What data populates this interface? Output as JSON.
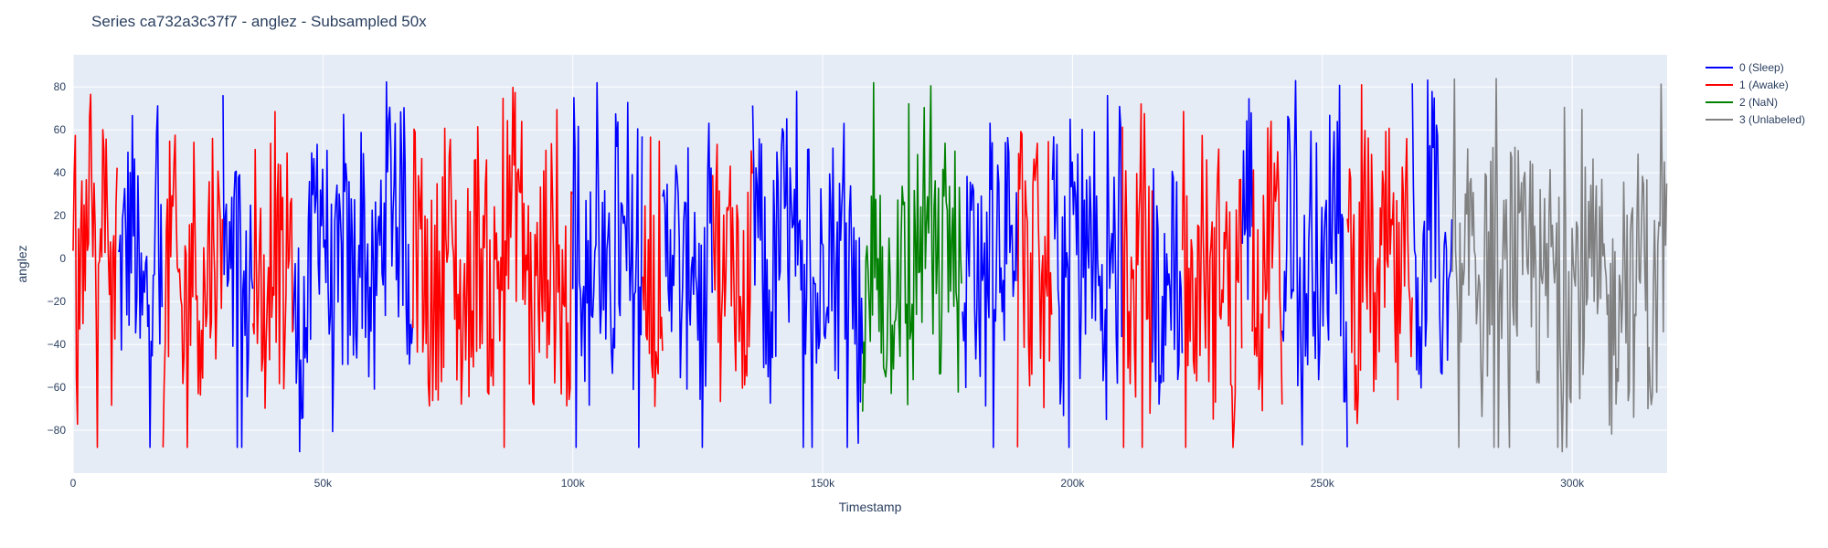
{
  "chart_data": {
    "type": "line",
    "title": "Series ca732a3c37f7 - anglez - Subsampled 50x",
    "xlabel": "Timestamp",
    "ylabel": "anglez",
    "xlim": [
      0,
      319000
    ],
    "ylim": [
      -100,
      95
    ],
    "x_ticks": [
      0,
      50000,
      100000,
      150000,
      200000,
      250000,
      300000
    ],
    "x_tick_labels": [
      "0",
      "50k",
      "100k",
      "150k",
      "200k",
      "250k",
      "300k"
    ],
    "y_ticks": [
      -80,
      -60,
      -40,
      -20,
      0,
      20,
      40,
      60,
      80
    ],
    "y_tick_labels": [
      "−80",
      "−60",
      "−40",
      "−20",
      "0",
      "20",
      "40",
      "60",
      "80"
    ],
    "grid": true,
    "legend_position": "top-right",
    "series": [
      {
        "name": "0 (Sleep)",
        "color": "#0000ff",
        "segments": [
          [
            9000,
            18000
          ],
          [
            30000,
            36000
          ],
          [
            44000,
            68000
          ],
          [
            100000,
            114000
          ],
          [
            118000,
            128000
          ],
          [
            136000,
            158000
          ],
          [
            178000,
            189000
          ],
          [
            196000,
            210000
          ],
          [
            216000,
            222000
          ],
          [
            234000,
            236000
          ],
          [
            242000,
            255000
          ],
          [
            268000,
            276000
          ]
        ],
        "points": [
          [
            9000,
            -30
          ],
          [
            10500,
            5
          ],
          [
            12000,
            50
          ],
          [
            13500,
            -75
          ],
          [
            15000,
            -40
          ],
          [
            16500,
            70
          ],
          [
            17500,
            -55
          ],
          [
            30000,
            20
          ],
          [
            31500,
            -60
          ],
          [
            33000,
            40
          ],
          [
            34500,
            -85
          ],
          [
            35500,
            10
          ],
          [
            45000,
            -85
          ],
          [
            47000,
            -60
          ],
          [
            49000,
            85
          ],
          [
            50000,
            60
          ],
          [
            52000,
            -70
          ],
          [
            54000,
            -5
          ],
          [
            56000,
            -30
          ],
          [
            58000,
            45
          ],
          [
            60000,
            -80
          ],
          [
            62000,
            55
          ],
          [
            64000,
            85
          ],
          [
            66000,
            20
          ],
          [
            67500,
            -10
          ],
          [
            101000,
            65
          ],
          [
            103000,
            -60
          ],
          [
            105000,
            40
          ],
          [
            107000,
            -80
          ],
          [
            109000,
            30
          ],
          [
            111000,
            -45
          ],
          [
            113000,
            10
          ],
          [
            118000,
            -30
          ],
          [
            120000,
            50
          ],
          [
            122000,
            -60
          ],
          [
            124000,
            40
          ],
          [
            126000,
            -85
          ],
          [
            127500,
            0
          ],
          [
            137000,
            45
          ],
          [
            139000,
            -70
          ],
          [
            141000,
            10
          ],
          [
            143000,
            55
          ],
          [
            145000,
            -80
          ],
          [
            147000,
            40
          ],
          [
            149000,
            -60
          ],
          [
            151000,
            60
          ],
          [
            153000,
            -20
          ],
          [
            155000,
            55
          ],
          [
            157000,
            -75
          ],
          [
            178500,
            -30
          ],
          [
            180000,
            40
          ],
          [
            182000,
            -60
          ],
          [
            184000,
            20
          ],
          [
            186000,
            50
          ],
          [
            188000,
            -40
          ],
          [
            196500,
            30
          ],
          [
            198000,
            -70
          ],
          [
            200000,
            60
          ],
          [
            202000,
            -40
          ],
          [
            204000,
            45
          ],
          [
            206000,
            -80
          ],
          [
            208000,
            10
          ],
          [
            209500,
            -50
          ],
          [
            216500,
            -20
          ],
          [
            218500,
            -85
          ],
          [
            220000,
            40
          ],
          [
            221500,
            -50
          ],
          [
            234500,
            40
          ],
          [
            235500,
            75
          ],
          [
            242500,
            -20
          ],
          [
            244000,
            75
          ],
          [
            246000,
            -85
          ],
          [
            248000,
            50
          ],
          [
            250000,
            -60
          ],
          [
            252000,
            85
          ],
          [
            254000,
            -30
          ],
          [
            268500,
            30
          ],
          [
            270000,
            -75
          ],
          [
            272000,
            70
          ],
          [
            274000,
            -40
          ],
          [
            275500,
            10
          ]
        ]
      },
      {
        "name": "1 (Awake)",
        "color": "#ff0000",
        "segments": [
          [
            0,
            9000
          ],
          [
            18000,
            30000
          ],
          [
            36000,
            44000
          ],
          [
            68000,
            100000
          ],
          [
            114000,
            118000
          ],
          [
            128000,
            136000
          ],
          [
            189000,
            196000
          ],
          [
            210000,
            216000
          ],
          [
            222000,
            234000
          ],
          [
            236000,
            242000
          ],
          [
            255000,
            268000
          ]
        ],
        "points": [
          [
            0,
            85
          ],
          [
            1000,
            -90
          ],
          [
            2000,
            30
          ],
          [
            3000,
            -80
          ],
          [
            4000,
            10
          ],
          [
            5000,
            -60
          ],
          [
            6000,
            40
          ],
          [
            7000,
            80
          ],
          [
            8000,
            -85
          ],
          [
            8800,
            30
          ],
          [
            18500,
            -30
          ],
          [
            20000,
            30
          ],
          [
            22000,
            -80
          ],
          [
            24000,
            25
          ],
          [
            26000,
            -60
          ],
          [
            28000,
            40
          ],
          [
            29500,
            -20
          ],
          [
            36500,
            30
          ],
          [
            38000,
            -70
          ],
          [
            40000,
            60
          ],
          [
            42000,
            -50
          ],
          [
            43500,
            20
          ],
          [
            69000,
            20
          ],
          [
            72000,
            -60
          ],
          [
            75000,
            35
          ],
          [
            78000,
            -70
          ],
          [
            81000,
            30
          ],
          [
            84000,
            -50
          ],
          [
            87000,
            40
          ],
          [
            89000,
            80
          ],
          [
            92000,
            -70
          ],
          [
            95000,
            20
          ],
          [
            98000,
            -50
          ],
          [
            114500,
            -40
          ],
          [
            115500,
            30
          ],
          [
            116500,
            -70
          ],
          [
            117500,
            20
          ],
          [
            128500,
            50
          ],
          [
            130000,
            -60
          ],
          [
            132000,
            40
          ],
          [
            134000,
            -80
          ],
          [
            135500,
            20
          ],
          [
            189500,
            80
          ],
          [
            191000,
            -50
          ],
          [
            192500,
            30
          ],
          [
            194000,
            -70
          ],
          [
            195500,
            20
          ],
          [
            210500,
            30
          ],
          [
            212000,
            -80
          ],
          [
            214000,
            60
          ],
          [
            215500,
            -40
          ],
          [
            222500,
            40
          ],
          [
            224000,
            -80
          ],
          [
            226000,
            30
          ],
          [
            228000,
            -60
          ],
          [
            230000,
            40
          ],
          [
            232000,
            -85
          ],
          [
            233500,
            20
          ],
          [
            236500,
            20
          ],
          [
            238000,
            -60
          ],
          [
            240000,
            85
          ],
          [
            241500,
            -40
          ],
          [
            255500,
            20
          ],
          [
            257000,
            -60
          ],
          [
            259000,
            45
          ],
          [
            261000,
            -80
          ],
          [
            263000,
            30
          ],
          [
            265000,
            -60
          ],
          [
            267000,
            20
          ]
        ]
      },
      {
        "name": "2 (NaN)",
        "color": "#008000",
        "segments": [
          [
            158000,
            178000
          ]
        ],
        "points": [
          [
            158500,
            -90
          ],
          [
            161000,
            30
          ],
          [
            163000,
            -60
          ],
          [
            165000,
            20
          ],
          [
            167000,
            -70
          ],
          [
            169000,
            10
          ],
          [
            171000,
            55
          ],
          [
            173000,
            -50
          ],
          [
            175000,
            40
          ],
          [
            177500,
            -30
          ]
        ]
      },
      {
        "name": "3 (Unlabeled)",
        "color": "#808080",
        "segments": [
          [
            276000,
            319000
          ]
        ],
        "points": [
          [
            276500,
            -20
          ],
          [
            278000,
            -85
          ],
          [
            280000,
            60
          ],
          [
            282000,
            -50
          ],
          [
            284000,
            30
          ],
          [
            286000,
            -70
          ],
          [
            288000,
            40
          ],
          [
            290000,
            -40
          ],
          [
            292000,
            20
          ],
          [
            294000,
            -60
          ],
          [
            296000,
            10
          ],
          [
            298000,
            -85
          ],
          [
            300000,
            -20
          ],
          [
            302000,
            -25
          ],
          [
            304000,
            -15
          ],
          [
            306000,
            -40
          ],
          [
            308000,
            -80
          ],
          [
            310000,
            20
          ],
          [
            312000,
            -60
          ],
          [
            314000,
            30
          ],
          [
            316000,
            -85
          ],
          [
            318000,
            15
          ]
        ]
      }
    ]
  }
}
